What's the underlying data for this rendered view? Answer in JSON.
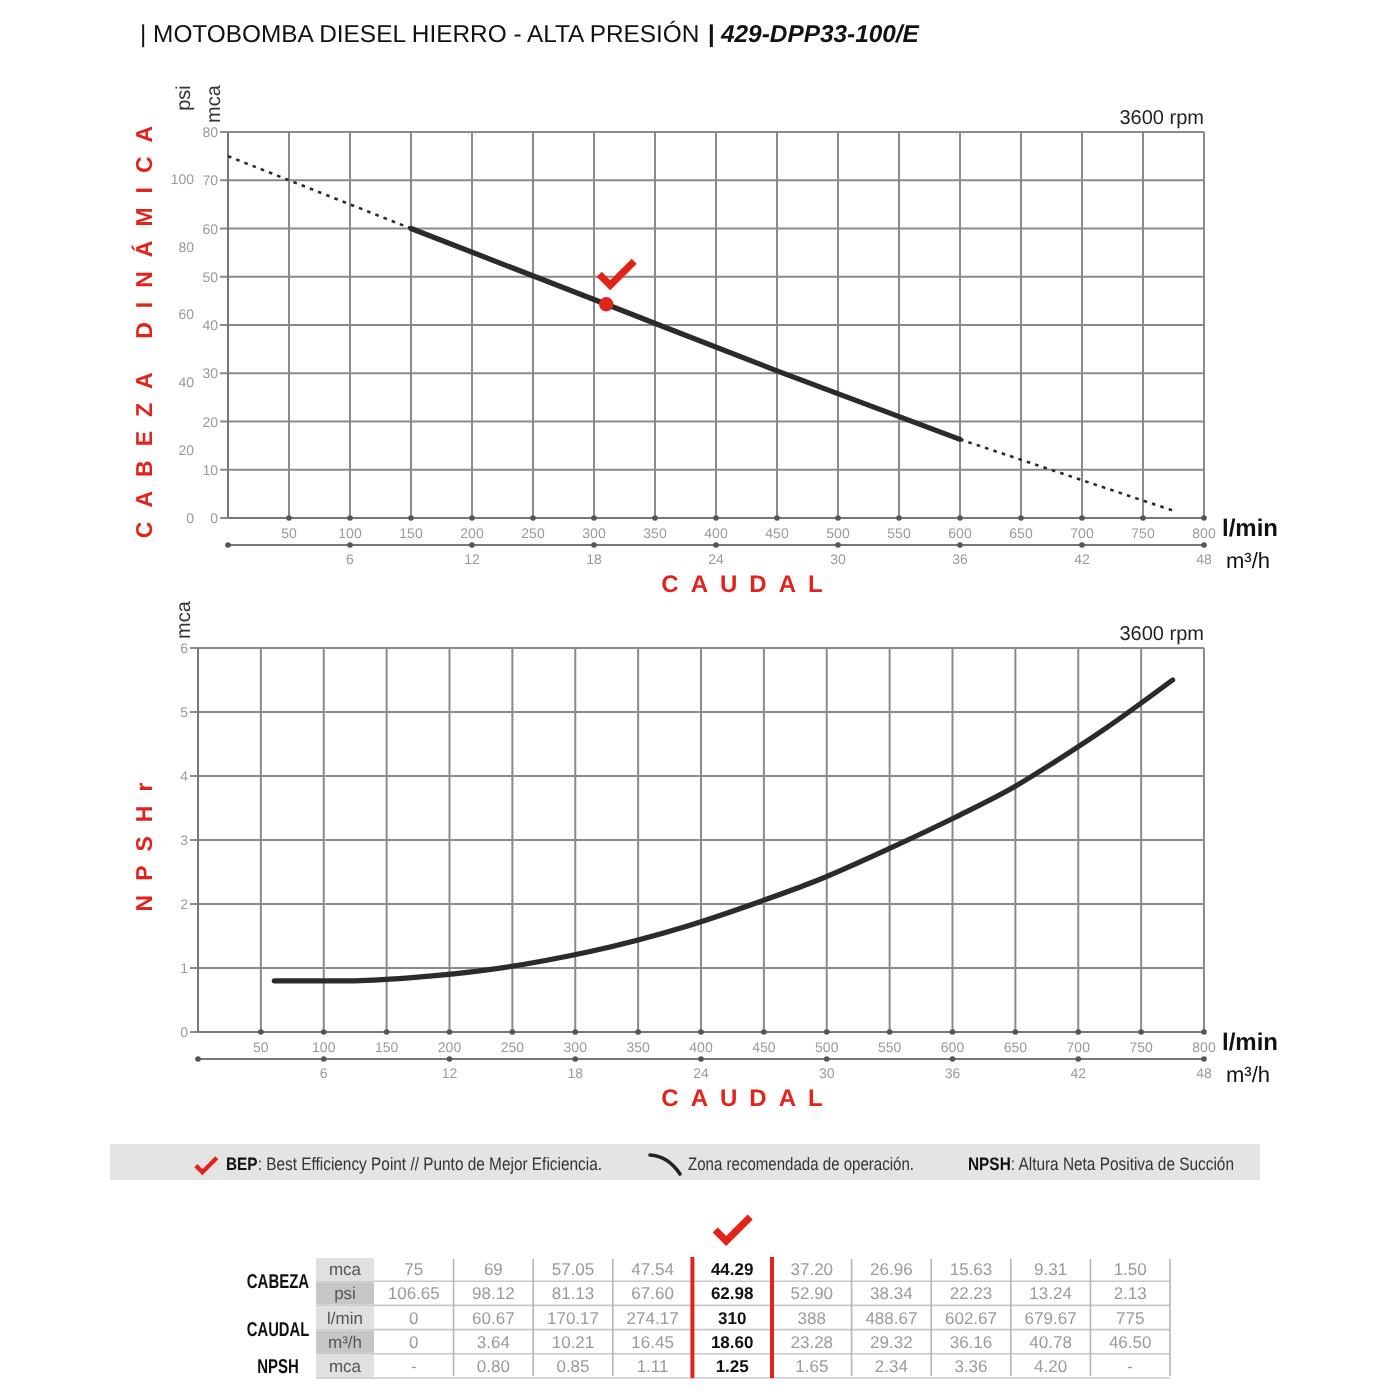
{
  "chart_data": [
    {
      "type": "line",
      "title": "| MOTOBOMBA DIESEL HIERRO - ALTA PRESIÓN",
      "subtitle": "| 429-DPP33-100/E",
      "xlabel": "CAUDAL",
      "ylabel": "mca",
      "y2label": "psi",
      "x2label": "m³/h",
      "annotations": [
        "CABEZA DINÁMICA",
        "l/min",
        "3600 rpm"
      ],
      "xlim": [
        0,
        800
      ],
      "xticks": [
        50,
        100,
        150,
        200,
        250,
        300,
        350,
        400,
        450,
        500,
        550,
        600,
        650,
        700,
        750,
        800
      ],
      "x2lim": [
        0,
        48
      ],
      "x2ticks": [
        {
          "value": 0,
          "label": null
        },
        6,
        12,
        18,
        24,
        30,
        36,
        42,
        48
      ],
      "ylim": [
        0,
        80
      ],
      "yticks": [
        0,
        10,
        20,
        30,
        40,
        50,
        60,
        70,
        80
      ],
      "y2lim": [
        0,
        113.8
      ],
      "y2ticks": [
        0,
        20,
        40,
        60,
        80,
        100
      ],
      "grid": true,
      "series": [
        {
          "type": "line",
          "line_style": "dotted",
          "color": "#2b2b2b",
          "x": [
            0,
            150
          ],
          "values": [
            75,
            60
          ]
        },
        {
          "type": "line",
          "line_style": "solid",
          "color": "#2b2b2b",
          "x": [
            150,
            310,
            450,
            600
          ],
          "values": [
            60,
            44.3,
            30.5,
            16.3
          ]
        },
        {
          "type": "line",
          "line_style": "dotted",
          "color": "#2b2b2b",
          "x": [
            600,
            775
          ],
          "values": [
            16.3,
            1.5
          ]
        },
        {
          "type": "scatter",
          "marker": "circle",
          "color": "#e3231b",
          "x": [
            310
          ],
          "values": [
            44.3
          ]
        }
      ]
    },
    {
      "type": "line",
      "xlabel": "CAUDAL",
      "ylabel": "NPSHr",
      "x2label": "m³/h",
      "annotations": [
        "mca",
        "l/min",
        "3600 rpm"
      ],
      "xlim": [
        0,
        800
      ],
      "xticks": [
        50,
        100,
        150,
        200,
        250,
        300,
        350,
        400,
        450,
        500,
        550,
        600,
        650,
        700,
        750,
        800
      ],
      "x2lim": [
        0,
        48
      ],
      "x2ticks": [
        {
          "value": 0,
          "label": null
        },
        6,
        12,
        18,
        24,
        30,
        36,
        42,
        48
      ],
      "ylim": [
        0,
        6
      ],
      "yticks": [
        0,
        1,
        2,
        3,
        4,
        5,
        6
      ],
      "grid": true,
      "series": [
        {
          "type": "line",
          "line_style": "solid",
          "color": "#2b2b2b",
          "x": [
            60.67,
            120,
            170.17,
            230,
            274.17,
            310,
            388,
            450,
            488.67,
            550,
            602.67,
            650,
            679.67,
            720,
            775
          ],
          "values": [
            0.8,
            0.8,
            0.85,
            0.97,
            1.11,
            1.25,
            1.65,
            2.06,
            2.34,
            2.87,
            3.36,
            3.84,
            4.2,
            4.72,
            5.5
          ]
        }
      ]
    },
    {
      "type": "heatmap",
      "data_labels": true,
      "annotations": [
        "BEP: Best Efficiency Point // Punto de Mejor Eficiencia.",
        "Zona recomendada de operación.",
        "NPSH: Altura Neta Positiva de Succión",
        "CABEZA",
        "CAUDAL",
        "NPSH"
      ],
      "categories": [
        null,
        null,
        null,
        null,
        null,
        null,
        null,
        null,
        null,
        null
      ],
      "y_categories": [
        "mca",
        "psi",
        "l/min",
        "m³/h",
        "mca"
      ],
      "cells": [
        [
          75,
          69,
          57.05,
          47.54,
          44.29,
          37.2,
          26.96,
          15.63,
          9.31,
          1.5
        ],
        [
          106.65,
          98.12,
          81.13,
          67.6,
          62.98,
          52.9,
          38.34,
          22.23,
          13.24,
          2.13
        ],
        [
          0,
          60.67,
          170.17,
          274.17,
          310,
          388,
          488.67,
          602.67,
          679.67,
          775
        ],
        [
          0,
          3.64,
          10.21,
          16.45,
          18.6,
          23.28,
          29.32,
          36.16,
          40.78,
          46.5
        ],
        [
          null,
          0.8,
          0.85,
          1.11,
          1.25,
          1.65,
          2.34,
          3.36,
          4.2,
          null
        ]
      ],
      "cell_labels": [
        [
          "75",
          "69",
          "57.05",
          "47.54",
          "44.29",
          "37.20",
          "26.96",
          "15.63",
          "9.31",
          "1.50"
        ],
        [
          "106.65",
          "98.12",
          "81.13",
          "67.60",
          "62.98",
          "52.90",
          "38.34",
          "22.23",
          "13.24",
          "2.13"
        ],
        [
          "0",
          "60.67",
          "170.17",
          "274.17",
          "310",
          "388",
          "488.67",
          "602.67",
          "679.67",
          "775"
        ],
        [
          "0",
          "3.64",
          "10.21",
          "16.45",
          "18.60",
          "23.28",
          "29.32",
          "36.16",
          "40.78",
          "46.50"
        ],
        [
          "-",
          "0.80",
          "0.85",
          "1.11",
          "1.25",
          "1.65",
          "2.34",
          "3.36",
          "4.20",
          "-"
        ]
      ]
    }
  ]
}
